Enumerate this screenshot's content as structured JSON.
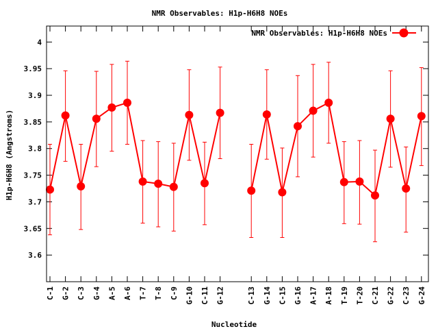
{
  "chart_data": {
    "type": "line",
    "title": "NMR Observables: H1p-H6H8 NOEs",
    "xlabel": "Nucleotide",
    "ylabel": "H1p-H6H8 (Angstroms)",
    "ylim": [
      3.55,
      4.03
    ],
    "yticks": [
      "3.6",
      "3.65",
      "3.7",
      "3.75",
      "3.8",
      "3.85",
      "3.9",
      "3.95",
      "4"
    ],
    "legend_position": "top-right",
    "grid": false,
    "series": [
      {
        "name": "NMR Observables: H1p-H6H8 NOEs",
        "color": "#ff0000",
        "segments": [
          {
            "categories": [
              "C-1",
              "G-2",
              "C-3",
              "G-4",
              "A-5",
              "A-6",
              "T-7",
              "T-8",
              "C-9",
              "G-10",
              "C-11",
              "G-12"
            ],
            "values": [
              3.723,
              3.862,
              3.729,
              3.856,
              3.877,
              3.886,
              3.738,
              3.734,
              3.728,
              3.863,
              3.735,
              3.867
            ],
            "err_low": [
              3.638,
              3.776,
              3.648,
              3.766,
              3.795,
              3.808,
              3.66,
              3.653,
              3.645,
              3.778,
              3.657,
              3.781
            ],
            "err_high": [
              3.808,
              3.946,
              3.808,
              3.945,
              3.958,
              3.964,
              3.815,
              3.813,
              3.81,
              3.948,
              3.812,
              3.953
            ]
          },
          {
            "categories": [
              "C-13",
              "G-14",
              "C-15",
              "G-16",
              "A-17",
              "A-18",
              "T-19",
              "T-20",
              "C-21",
              "G-22",
              "C-23",
              "G-24"
            ],
            "values": [
              3.721,
              3.864,
              3.718,
              3.842,
              3.871,
              3.886,
              3.737,
              3.738,
              3.712,
              3.856,
              3.725,
              3.861
            ],
            "err_low": [
              3.633,
              3.78,
              3.633,
              3.747,
              3.784,
              3.81,
              3.659,
              3.658,
              3.625,
              3.765,
              3.643,
              3.768
            ],
            "err_high": [
              3.808,
              3.948,
              3.801,
              3.937,
              3.958,
              3.962,
              3.813,
              3.815,
              3.797,
              3.946,
              3.803,
              3.952
            ]
          }
        ]
      }
    ]
  }
}
